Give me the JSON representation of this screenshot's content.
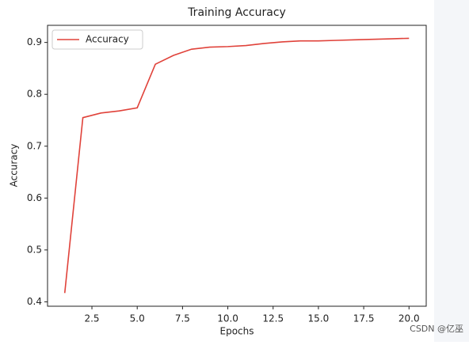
{
  "chart_data": {
    "type": "line",
    "title": "Training Accuracy",
    "xlabel": "Epochs",
    "ylabel": "Accuracy",
    "x": [
      1,
      2,
      3,
      4,
      5,
      6,
      7,
      8,
      9,
      10,
      11,
      12,
      13,
      14,
      15,
      16,
      17,
      18,
      19,
      20
    ],
    "series": [
      {
        "name": "Accuracy",
        "color": "#e0423a",
        "values": [
          0.417,
          0.755,
          0.764,
          0.768,
          0.774,
          0.858,
          0.875,
          0.887,
          0.891,
          0.892,
          0.894,
          0.898,
          0.901,
          0.903,
          0.903,
          0.904,
          0.905,
          0.906,
          0.907,
          0.908
        ]
      }
    ],
    "xlim": [
      0.05,
      20.95
    ],
    "xticks": [
      {
        "value": 2.5,
        "label": "2.5"
      },
      {
        "value": 5,
        "label": "5.0"
      },
      {
        "value": 7.5,
        "label": "7.5"
      },
      {
        "value": 10,
        "label": "10.0"
      },
      {
        "value": 12.5,
        "label": "12.5"
      },
      {
        "value": 15,
        "label": "15.0"
      },
      {
        "value": 17.5,
        "label": "17.5"
      },
      {
        "value": 20,
        "label": "20.0"
      }
    ],
    "ylim": [
      0.3915,
      0.933
    ],
    "yticks": [
      0.4,
      0.5,
      0.6,
      0.7,
      0.8,
      0.9
    ],
    "legend": "upper left",
    "watermark": "CSDN @亿巫"
  }
}
